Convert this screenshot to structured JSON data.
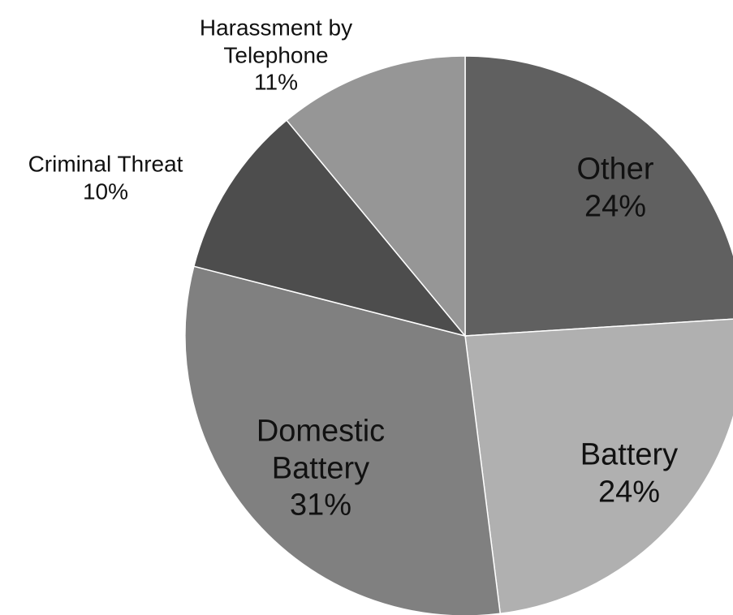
{
  "chart_data": {
    "type": "pie",
    "categories": [
      "Other",
      "Battery",
      "Domestic Battery",
      "Criminal Threat",
      "Harassment by Telephone"
    ],
    "values": [
      24,
      24,
      31,
      10,
      11
    ],
    "value_labels": [
      "24%",
      "24%",
      "31%",
      "10%",
      "11%"
    ],
    "colors": [
      "#606060",
      "#b0b0b0",
      "#808080",
      "#4d4d4d",
      "#969696"
    ]
  }
}
